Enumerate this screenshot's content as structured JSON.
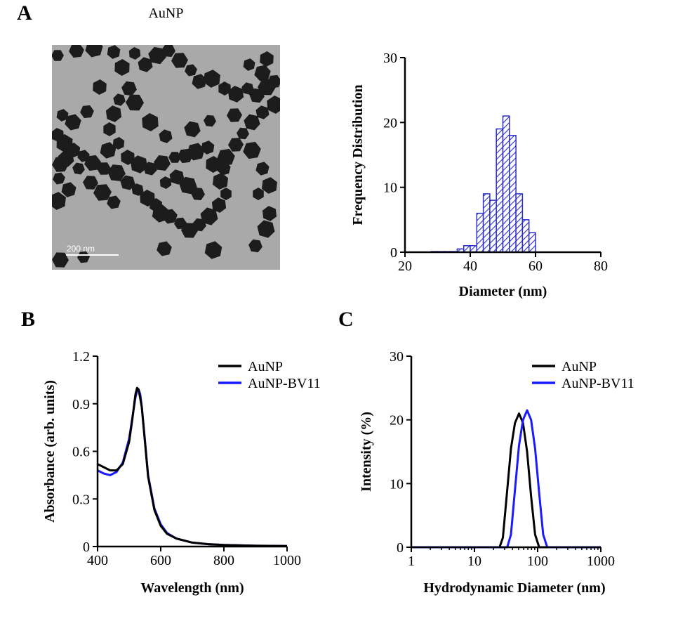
{
  "panels": {
    "a": "A",
    "b": "B",
    "c": "C"
  },
  "tem": {
    "title": "AuNP",
    "scale_bar_label": "200 nm"
  },
  "colors": {
    "axis": "#000000",
    "histogram": "#2c2ccc",
    "series_aunp": "#000000",
    "series_aunp_bv11": "#1a1aff",
    "tem_background": "#a8a8a8",
    "particle": "#1c1c1c"
  },
  "chart_data": [
    {
      "type": "bar",
      "panel": "A",
      "xlabel": "Diameter (nm)",
      "ylabel": "Frequency Distribution",
      "xlim": [
        20,
        80
      ],
      "ylim": [
        0,
        30
      ],
      "xticks": [
        20,
        40,
        60,
        80
      ],
      "yticks": [
        0,
        10,
        20,
        30
      ],
      "bin_width": 2,
      "bins": [
        {
          "x": 29,
          "value": 0.1
        },
        {
          "x": 31,
          "value": 0.1
        },
        {
          "x": 33,
          "value": 0.1
        },
        {
          "x": 35,
          "value": 0.1
        },
        {
          "x": 37,
          "value": 0.5
        },
        {
          "x": 39,
          "value": 1
        },
        {
          "x": 41,
          "value": 1
        },
        {
          "x": 43,
          "value": 6
        },
        {
          "x": 45,
          "value": 9
        },
        {
          "x": 47,
          "value": 8
        },
        {
          "x": 49,
          "value": 19
        },
        {
          "x": 51,
          "value": 21
        },
        {
          "x": 53,
          "value": 18
        },
        {
          "x": 55,
          "value": 9
        },
        {
          "x": 57,
          "value": 5
        },
        {
          "x": 59,
          "value": 3
        }
      ],
      "grid": false
    },
    {
      "type": "line",
      "panel": "B",
      "xlabel": "Wavelength (nm)",
      "ylabel": "Absorbance (arb. units)",
      "xlim": [
        400,
        1000
      ],
      "ylim": [
        0,
        1.2
      ],
      "xticks": [
        400,
        600,
        800,
        1000
      ],
      "yticks": [
        0,
        0.3,
        0.6,
        0.9,
        1.2
      ],
      "ytick_labels": [
        "0",
        "0.3",
        "0.6",
        "0.9",
        "1.2"
      ],
      "legend": "top-right",
      "grid": false,
      "series": [
        {
          "name": "AuNP",
          "x": [
            400,
            420,
            440,
            460,
            480,
            500,
            510,
            520,
            525,
            530,
            540,
            550,
            560,
            580,
            600,
            620,
            650,
            700,
            750,
            800,
            900,
            1000
          ],
          "y": [
            0.52,
            0.5,
            0.48,
            0.48,
            0.52,
            0.66,
            0.8,
            0.96,
            1.0,
            0.99,
            0.88,
            0.66,
            0.44,
            0.23,
            0.13,
            0.08,
            0.05,
            0.025,
            0.015,
            0.01,
            0.005,
            0.003
          ]
        },
        {
          "name": "AuNP-BV11",
          "x": [
            400,
            420,
            440,
            460,
            480,
            500,
            510,
            520,
            525,
            530,
            535,
            540,
            550,
            560,
            580,
            600,
            620,
            650,
            700,
            750,
            800,
            900,
            1000
          ],
          "y": [
            0.48,
            0.46,
            0.45,
            0.47,
            0.53,
            0.68,
            0.81,
            0.94,
            0.98,
            0.99,
            0.96,
            0.88,
            0.67,
            0.45,
            0.24,
            0.14,
            0.085,
            0.05,
            0.025,
            0.015,
            0.01,
            0.005,
            0.003
          ]
        }
      ]
    },
    {
      "type": "line",
      "panel": "C",
      "xlabel": "Hydrodynamic Diameter  (nm)",
      "ylabel": "Intensity (%)",
      "xscale": "log",
      "xlim": [
        1,
        1000
      ],
      "ylim": [
        0,
        30
      ],
      "xticks": [
        1,
        10,
        100,
        1000
      ],
      "yticks": [
        0,
        10,
        20,
        30
      ],
      "legend": "top-right",
      "grid": false,
      "series": [
        {
          "name": "AuNP",
          "x": [
            1,
            25,
            28.2,
            32.7,
            37.8,
            43.8,
            50.7,
            58.8,
            68.1,
            78.8,
            91.3,
            105.7,
            1000
          ],
          "y": [
            0,
            0,
            1.5,
            8.5,
            15.5,
            19.5,
            21,
            19.5,
            15,
            8,
            2,
            0,
            0
          ]
        },
        {
          "name": "AuNP-BV11",
          "x": [
            1,
            33,
            37.8,
            43.8,
            50.7,
            58.8,
            68.1,
            78.8,
            91.3,
            105.7,
            122.4,
            141.8,
            1000
          ],
          "y": [
            0,
            0,
            2,
            9,
            16,
            20,
            21.5,
            20,
            15.5,
            8.5,
            2,
            0,
            0
          ]
        }
      ]
    }
  ]
}
